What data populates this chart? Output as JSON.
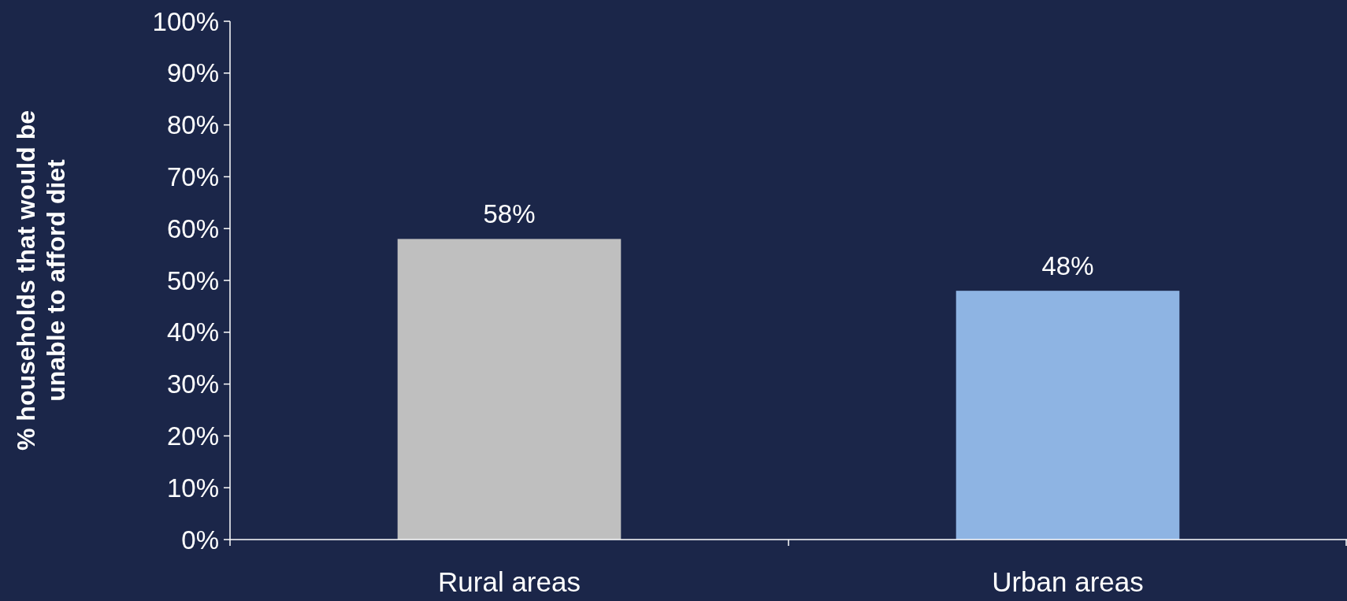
{
  "chart_data": {
    "type": "bar",
    "ylabel": "% households that would be unable to afford diet",
    "categories": [
      "Rural areas",
      "Urban areas"
    ],
    "values": [
      58,
      48
    ],
    "colors": [
      "#bfbfbf",
      "#8eb4e3"
    ],
    "value_labels": [
      "58%",
      "48%"
    ],
    "ylim": [
      0,
      100
    ],
    "yticks": [
      {
        "value": 0,
        "label": "0%"
      },
      {
        "value": 10,
        "label": "10%"
      },
      {
        "value": 20,
        "label": "20%"
      },
      {
        "value": 30,
        "label": "30%"
      },
      {
        "value": 40,
        "label": "40%"
      },
      {
        "value": 50,
        "label": "50%"
      },
      {
        "value": 60,
        "label": "60%"
      },
      {
        "value": 70,
        "label": "70%"
      },
      {
        "value": 80,
        "label": "80%"
      },
      {
        "value": 90,
        "label": "90%"
      },
      {
        "value": 100,
        "label": "100%"
      }
    ],
    "grid": false
  }
}
